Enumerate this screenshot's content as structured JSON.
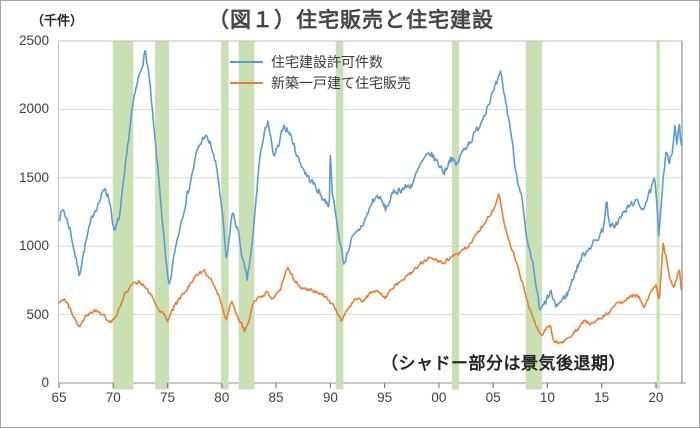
{
  "figure": {
    "title": "（図１）住宅販売と住宅建設",
    "y_axis_unit": "（千件）",
    "annotation": "（シャドー部分は景気後退期）"
  },
  "legend": {
    "items": [
      {
        "label": "住宅建設許可件数",
        "color": "#5B9BD5"
      },
      {
        "label": "新築一戸建て住宅販売",
        "color": "#ED7D31"
      }
    ]
  },
  "chart_data": {
    "type": "line",
    "title": "（図１）住宅販売と住宅建設",
    "y_unit": "千件",
    "annotation": "（シャドー部分は景気後退期）",
    "x_range": [
      1965.0,
      2022.4
    ],
    "ylim": [
      0,
      2500
    ],
    "y_tick_values": [
      0,
      500,
      1000,
      1500,
      2000,
      2500
    ],
    "y_tick_labels": [
      "0",
      "500",
      "1000",
      "1500",
      "2000",
      "2500"
    ],
    "x_tick_years": [
      1965,
      1970,
      1975,
      1980,
      1985,
      1990,
      1995,
      2000,
      2005,
      2010,
      2015,
      2020
    ],
    "x_tick_labels": [
      "65",
      "70",
      "75",
      "80",
      "85",
      "90",
      "95",
      "00",
      "05",
      "10",
      "15",
      "20"
    ],
    "grid": "horizontal",
    "legend_position": "top-center",
    "sampling": "monthly",
    "seed": 7,
    "recession_band_color": "#C9E0B4",
    "recession_bands": [
      [
        1969.95,
        1971.85
      ],
      [
        1973.85,
        1975.15
      ],
      [
        1979.95,
        1980.62
      ],
      [
        1981.55,
        1983.0
      ],
      [
        1990.5,
        1991.2
      ],
      [
        2001.2,
        2001.85
      ],
      [
        2008.0,
        2009.5
      ],
      [
        2020.05,
        2020.35
      ]
    ],
    "series": [
      {
        "name": "住宅建設許可件数",
        "color": "#5B9BD5",
        "jitter": 28,
        "anchors": [
          [
            1965.0,
            1210
          ],
          [
            1965.4,
            1270
          ],
          [
            1966.0,
            1130
          ],
          [
            1966.85,
            790
          ],
          [
            1967.4,
            1000
          ],
          [
            1968.1,
            1230
          ],
          [
            1968.8,
            1340
          ],
          [
            1969.25,
            1430
          ],
          [
            1969.7,
            1320
          ],
          [
            1970.1,
            1090
          ],
          [
            1970.6,
            1230
          ],
          [
            1971.1,
            1560
          ],
          [
            1971.7,
            1990
          ],
          [
            1972.3,
            2220
          ],
          [
            1972.95,
            2420
          ],
          [
            1973.25,
            2280
          ],
          [
            1973.7,
            1890
          ],
          [
            1974.3,
            1400
          ],
          [
            1974.85,
            880
          ],
          [
            1975.15,
            690
          ],
          [
            1975.7,
            980
          ],
          [
            1976.3,
            1200
          ],
          [
            1977.0,
            1430
          ],
          [
            1977.7,
            1690
          ],
          [
            1978.4,
            1810
          ],
          [
            1979.0,
            1740
          ],
          [
            1979.6,
            1540
          ],
          [
            1980.05,
            1230
          ],
          [
            1980.45,
            880
          ],
          [
            1980.95,
            1250
          ],
          [
            1981.45,
            1130
          ],
          [
            1982.0,
            870
          ],
          [
            1982.35,
            750
          ],
          [
            1982.85,
            1050
          ],
          [
            1983.5,
            1660
          ],
          [
            1984.25,
            1930
          ],
          [
            1984.75,
            1650
          ],
          [
            1985.35,
            1750
          ],
          [
            1985.65,
            1890
          ],
          [
            1986.3,
            1820
          ],
          [
            1987.0,
            1650
          ],
          [
            1987.8,
            1520
          ],
          [
            1988.6,
            1440
          ],
          [
            1989.4,
            1340
          ],
          [
            1989.9,
            1300
          ],
          [
            1990.02,
            1720
          ],
          [
            1990.18,
            1380
          ],
          [
            1990.7,
            1120
          ],
          [
            1991.25,
            870
          ],
          [
            1991.9,
            1040
          ],
          [
            1992.5,
            1100
          ],
          [
            1993.2,
            1190
          ],
          [
            1993.9,
            1330
          ],
          [
            1994.4,
            1370
          ],
          [
            1995.1,
            1270
          ],
          [
            1995.9,
            1400
          ],
          [
            1996.7,
            1420
          ],
          [
            1997.5,
            1450
          ],
          [
            1998.4,
            1610
          ],
          [
            1999.2,
            1680
          ],
          [
            1999.9,
            1610
          ],
          [
            2000.5,
            1540
          ],
          [
            2001.1,
            1650
          ],
          [
            2001.6,
            1590
          ],
          [
            2002.3,
            1710
          ],
          [
            2003.1,
            1790
          ],
          [
            2003.9,
            1910
          ],
          [
            2004.6,
            2050
          ],
          [
            2005.1,
            2140
          ],
          [
            2005.7,
            2260
          ],
          [
            2006.1,
            2080
          ],
          [
            2006.6,
            1860
          ],
          [
            2007.1,
            1540
          ],
          [
            2007.6,
            1380
          ],
          [
            2008.1,
            1030
          ],
          [
            2008.7,
            850
          ],
          [
            2009.3,
            520
          ],
          [
            2009.9,
            600
          ],
          [
            2010.3,
            670
          ],
          [
            2010.7,
            560
          ],
          [
            2011.3,
            600
          ],
          [
            2011.9,
            660
          ],
          [
            2012.5,
            800
          ],
          [
            2013.1,
            910
          ],
          [
            2013.8,
            990
          ],
          [
            2014.5,
            1040
          ],
          [
            2015.1,
            1120
          ],
          [
            2015.45,
            1330
          ],
          [
            2015.75,
            1130
          ],
          [
            2016.4,
            1170
          ],
          [
            2017.2,
            1260
          ],
          [
            2018.0,
            1330
          ],
          [
            2018.8,
            1280
          ],
          [
            2019.4,
            1380
          ],
          [
            2019.9,
            1490
          ],
          [
            2020.25,
            1080
          ],
          [
            2020.6,
            1450
          ],
          [
            2020.95,
            1720
          ],
          [
            2021.2,
            1590
          ],
          [
            2021.5,
            1690
          ],
          [
            2021.75,
            1860
          ],
          [
            2021.95,
            1740
          ],
          [
            2022.15,
            1880
          ],
          [
            2022.4,
            1700
          ]
        ]
      },
      {
        "name": "新築一戸建て住宅販売",
        "color": "#ED7D31",
        "jitter": 14,
        "anchors": [
          [
            1965.0,
            590
          ],
          [
            1965.5,
            625
          ],
          [
            1966.1,
            530
          ],
          [
            1966.9,
            405
          ],
          [
            1967.5,
            490
          ],
          [
            1968.2,
            535
          ],
          [
            1969.0,
            500
          ],
          [
            1969.7,
            445
          ],
          [
            1970.3,
            490
          ],
          [
            1971.0,
            645
          ],
          [
            1971.8,
            720
          ],
          [
            1972.4,
            745
          ],
          [
            1973.0,
            700
          ],
          [
            1973.6,
            625
          ],
          [
            1974.3,
            530
          ],
          [
            1975.0,
            460
          ],
          [
            1975.6,
            555
          ],
          [
            1976.2,
            625
          ],
          [
            1976.9,
            695
          ],
          [
            1977.6,
            795
          ],
          [
            1978.4,
            815
          ],
          [
            1979.2,
            735
          ],
          [
            1979.9,
            600
          ],
          [
            1980.4,
            455
          ],
          [
            1980.9,
            600
          ],
          [
            1981.4,
            500
          ],
          [
            1982.1,
            380
          ],
          [
            1982.5,
            460
          ],
          [
            1982.95,
            600
          ],
          [
            1983.5,
            625
          ],
          [
            1984.1,
            660
          ],
          [
            1984.7,
            620
          ],
          [
            1985.4,
            685
          ],
          [
            1986.1,
            855
          ],
          [
            1986.6,
            760
          ],
          [
            1987.3,
            690
          ],
          [
            1988.1,
            680
          ],
          [
            1988.9,
            665
          ],
          [
            1989.6,
            630
          ],
          [
            1990.3,
            560
          ],
          [
            1991.05,
            450
          ],
          [
            1991.7,
            555
          ],
          [
            1992.3,
            610
          ],
          [
            1993.0,
            605
          ],
          [
            1993.8,
            660
          ],
          [
            1994.4,
            670
          ],
          [
            1995.05,
            625
          ],
          [
            1995.9,
            705
          ],
          [
            1996.6,
            750
          ],
          [
            1997.4,
            800
          ],
          [
            1998.3,
            875
          ],
          [
            1999.1,
            910
          ],
          [
            1999.9,
            890
          ],
          [
            2000.5,
            880
          ],
          [
            2001.2,
            925
          ],
          [
            2002.0,
            955
          ],
          [
            2002.8,
            1005
          ],
          [
            2003.6,
            1100
          ],
          [
            2004.3,
            1185
          ],
          [
            2005.0,
            1265
          ],
          [
            2005.55,
            1390
          ],
          [
            2006.05,
            1160
          ],
          [
            2006.6,
            1010
          ],
          [
            2007.2,
            865
          ],
          [
            2007.8,
            700
          ],
          [
            2008.3,
            560
          ],
          [
            2008.9,
            430
          ],
          [
            2009.4,
            345
          ],
          [
            2009.9,
            395
          ],
          [
            2010.25,
            425
          ],
          [
            2010.6,
            305
          ],
          [
            2011.2,
            295
          ],
          [
            2011.9,
            330
          ],
          [
            2012.6,
            378
          ],
          [
            2013.3,
            450
          ],
          [
            2014.0,
            432
          ],
          [
            2014.8,
            470
          ],
          [
            2015.6,
            515
          ],
          [
            2016.3,
            565
          ],
          [
            2017.1,
            608
          ],
          [
            2017.9,
            642
          ],
          [
            2018.5,
            625
          ],
          [
            2018.95,
            552
          ],
          [
            2019.5,
            668
          ],
          [
            2020.0,
            722
          ],
          [
            2020.3,
            582
          ],
          [
            2020.65,
            1030
          ],
          [
            2021.0,
            888
          ],
          [
            2021.3,
            762
          ],
          [
            2021.7,
            700
          ],
          [
            2022.0,
            802
          ],
          [
            2022.15,
            830
          ],
          [
            2022.4,
            640
          ]
        ]
      }
    ]
  }
}
